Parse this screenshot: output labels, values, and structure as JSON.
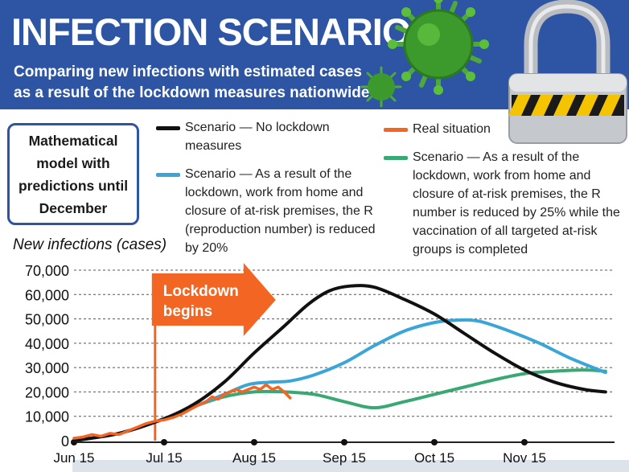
{
  "header": {
    "title": "INFECTION SCENARIOS",
    "subtitle_line1": "Comparing new infections with estimated cases",
    "subtitle_line2": "as a result of the lockdown measures nationwide"
  },
  "model_box": {
    "text": "Mathematical model with predictions until December"
  },
  "legend": {
    "items": [
      {
        "label": "Scenario — No lockdown measures",
        "color": "#111111"
      },
      {
        "label": "Scenario — As a result of the lockdown, work from home and closure of at-risk premises, the R (reproduction number) is reduced by 20%",
        "color": "#3aa6d8"
      },
      {
        "label": "Real situation",
        "color": "#f26522"
      },
      {
        "label": "Scenario — As a result of the lockdown, work from home and closure of at-risk premises, the R number is reduced by 25% while the vaccination of all targeted at-risk groups is completed",
        "color": "#3aa874"
      }
    ]
  },
  "colors": {
    "banner": "#2d55a4",
    "annotation": "#f26522"
  },
  "icons": [
    "virus-icon",
    "padlock-icon"
  ],
  "chart_data": {
    "type": "line",
    "ylabel": "New infections (cases)",
    "xlabel": "",
    "ylim": [
      0,
      70000
    ],
    "yticks": [
      0,
      10000,
      20000,
      30000,
      40000,
      50000,
      60000,
      70000
    ],
    "ytick_labels": [
      "0",
      "10,000",
      "20,000",
      "30,000",
      "40,000",
      "50,000",
      "60,000",
      "70,000"
    ],
    "xticks": [
      "Jun 15",
      "Jul 15",
      "Aug 15",
      "Sep 15",
      "Oct 15",
      "Nov 15"
    ],
    "xrange_days": [
      0,
      180
    ],
    "grid": "horizontal dashed",
    "annotation": {
      "label": "Lockdown begins",
      "day": 27
    },
    "series": [
      {
        "name": "Scenario — No lockdown measures",
        "key": "no_lockdown",
        "points": [
          [
            0,
            0
          ],
          [
            15,
            3000
          ],
          [
            30,
            9000
          ],
          [
            40,
            15000
          ],
          [
            50,
            24000
          ],
          [
            60,
            36000
          ],
          [
            70,
            47000
          ],
          [
            78,
            56000
          ],
          [
            85,
            61500
          ],
          [
            92,
            63500
          ],
          [
            100,
            63000
          ],
          [
            110,
            58000
          ],
          [
            120,
            52000
          ],
          [
            130,
            44000
          ],
          [
            140,
            36000
          ],
          [
            150,
            29000
          ],
          [
            160,
            24000
          ],
          [
            170,
            21000
          ],
          [
            177,
            20000
          ]
        ]
      },
      {
        "name": "Scenario — As a result of the lockdown, work from home and closure of at-risk premises, the R (reproduction number) is reduced by 20%",
        "key": "r_minus_20",
        "points": [
          [
            0,
            0
          ],
          [
            15,
            3000
          ],
          [
            30,
            9000
          ],
          [
            40,
            14000
          ],
          [
            50,
            19000
          ],
          [
            58,
            23000
          ],
          [
            65,
            24000
          ],
          [
            72,
            24500
          ],
          [
            80,
            27000
          ],
          [
            90,
            32000
          ],
          [
            100,
            39000
          ],
          [
            110,
            45000
          ],
          [
            120,
            48500
          ],
          [
            128,
            49500
          ],
          [
            135,
            49000
          ],
          [
            145,
            45000
          ],
          [
            155,
            40000
          ],
          [
            165,
            34000
          ],
          [
            177,
            28000
          ]
        ]
      },
      {
        "name": "Scenario — As a result of the lockdown, work from home and closure of at-risk premises, the R number is reduced by 25% while the vaccination of all targeted at-risk groups is completed",
        "key": "r_minus_25_vacc",
        "points": [
          [
            0,
            0
          ],
          [
            15,
            3000
          ],
          [
            30,
            9000
          ],
          [
            40,
            14000
          ],
          [
            50,
            18000
          ],
          [
            60,
            20000
          ],
          [
            70,
            20000
          ],
          [
            80,
            19000
          ],
          [
            90,
            16000
          ],
          [
            100,
            13500
          ],
          [
            110,
            16000
          ],
          [
            120,
            19000
          ],
          [
            130,
            22000
          ],
          [
            140,
            25000
          ],
          [
            150,
            27500
          ],
          [
            160,
            28500
          ],
          [
            170,
            29000
          ],
          [
            177,
            28500
          ]
        ]
      },
      {
        "name": "Real situation",
        "key": "real",
        "points": [
          [
            0,
            1000
          ],
          [
            3,
            1500
          ],
          [
            6,
            2500
          ],
          [
            9,
            1800
          ],
          [
            12,
            3000
          ],
          [
            15,
            2500
          ],
          [
            18,
            4000
          ],
          [
            21,
            5500
          ],
          [
            24,
            7000
          ],
          [
            27,
            8000
          ],
          [
            30,
            8500
          ],
          [
            33,
            9500
          ],
          [
            36,
            11000
          ],
          [
            39,
            13000
          ],
          [
            42,
            15000
          ],
          [
            44,
            16000
          ],
          [
            46,
            18000
          ],
          [
            48,
            17000
          ],
          [
            50,
            19000
          ],
          [
            52,
            20000
          ],
          [
            54,
            21000
          ],
          [
            56,
            20000
          ],
          [
            58,
            21000
          ],
          [
            60,
            22000
          ],
          [
            62,
            21000
          ],
          [
            64,
            23000
          ],
          [
            66,
            21000
          ],
          [
            68,
            22000
          ],
          [
            70,
            20000
          ],
          [
            72,
            17500
          ]
        ]
      }
    ]
  }
}
